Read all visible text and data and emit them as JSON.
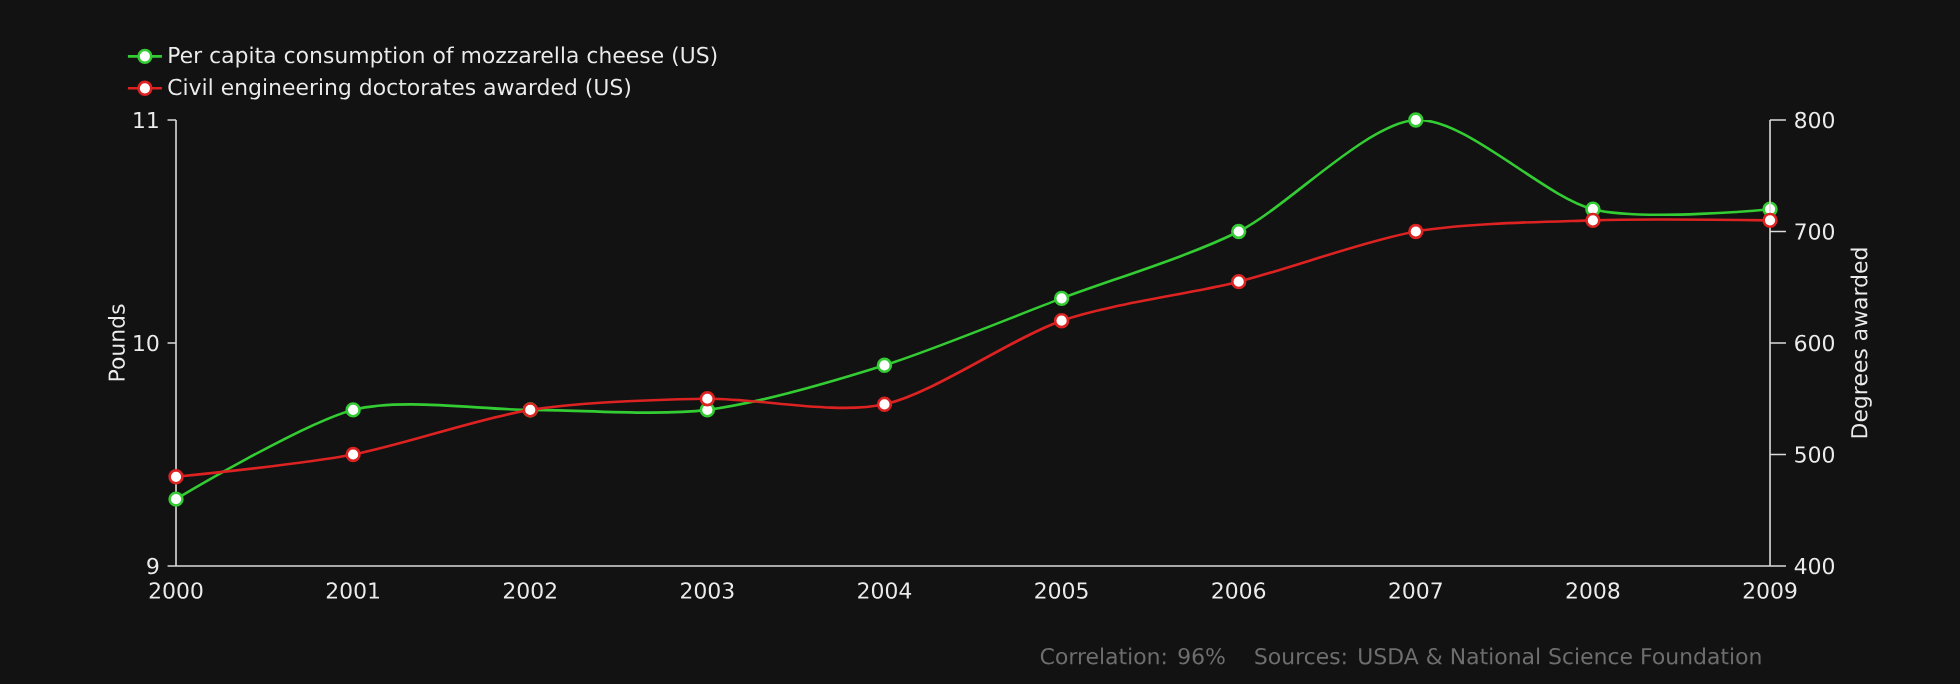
{
  "chart_data": {
    "type": "line",
    "x": [
      2000,
      2001,
      2002,
      2003,
      2004,
      2005,
      2006,
      2007,
      2008,
      2009
    ],
    "series": [
      {
        "name": "Per capita consumption of mozzarella cheese (US)",
        "color": "#33cc33",
        "values": [
          9.3,
          9.7,
          9.7,
          9.7,
          9.9,
          10.2,
          10.5,
          11.0,
          10.6,
          10.6
        ]
      },
      {
        "name": "Civil engineering doctorates awarded (US)",
        "color": "#dd2222",
        "axis": "y2",
        "values": [
          480,
          500,
          540,
          550,
          545,
          620,
          655,
          700,
          710,
          710
        ]
      }
    ],
    "ylabel": "Pounds",
    "y2label": "Degrees awarded",
    "xlim": [
      2000,
      2009
    ],
    "xticks": [
      2000,
      2001,
      2002,
      2003,
      2004,
      2005,
      2006,
      2007,
      2008,
      2009
    ],
    "ylim": [
      9,
      11
    ],
    "yticks": [
      9,
      10,
      11
    ],
    "y2lim": [
      400,
      800
    ],
    "y2ticks": [
      400,
      500,
      600,
      700,
      800
    ],
    "annotations": [
      "Correlation: 96%",
      "Sources: USDA & National Science Foundation"
    ],
    "legend": "top left",
    "marker": "circle",
    "line_style": "solid",
    "grid": false
  }
}
